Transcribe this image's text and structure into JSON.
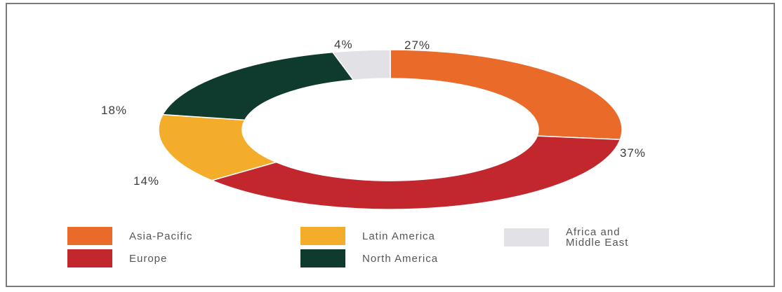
{
  "chart_data": {
    "type": "pie",
    "variant": "donut",
    "title": "",
    "series": [
      {
        "name": "Asia-Pacific",
        "value": 27,
        "label": "27%",
        "color": "#EA6A2A"
      },
      {
        "name": "Europe",
        "value": 37,
        "label": "37%",
        "color": "#C1272D"
      },
      {
        "name": "Latin America",
        "value": 14,
        "label": "14%",
        "color": "#F4AC2B"
      },
      {
        "name": "North America",
        "value": 18,
        "label": "18%",
        "color": "#0E3B2E"
      },
      {
        "name": "Africa and Middle East",
        "value": 4,
        "label": "4%",
        "color": "#E2E2E6"
      }
    ],
    "legend": {
      "placement": "bottom",
      "items": [
        {
          "name": "Asia-Pacific",
          "label": "Asia-Pacific",
          "color": "#EA6A2A"
        },
        {
          "name": "Latin America",
          "label": "Latin America",
          "color": "#F4AC2B"
        },
        {
          "name": "Africa and Middle East",
          "label": "Africa and\nMiddle East",
          "color": "#E2E2E6"
        },
        {
          "name": "Europe",
          "label": "Europe",
          "color": "#C1272D"
        },
        {
          "name": "North America",
          "label": "North America",
          "color": "#0E3B2E"
        }
      ]
    }
  }
}
